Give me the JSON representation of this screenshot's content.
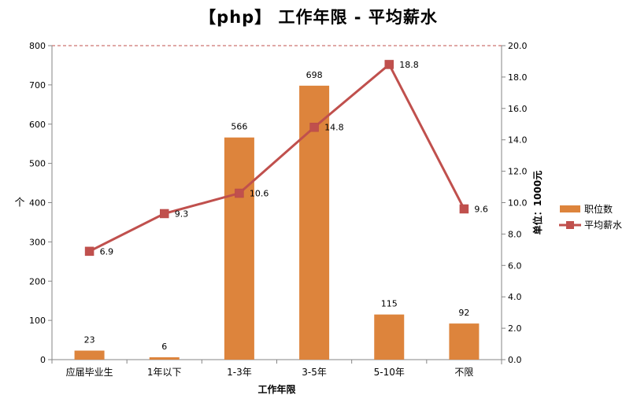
{
  "title": "【php】 工作年限 - 平均薪水",
  "chart_data": {
    "type": "bar+line",
    "title": "【php】 工作年限 - 平均薪水",
    "xlabel": "工作年限",
    "ylabel": "个",
    "y2label": "单位：1000元",
    "categories": [
      "应届毕业生",
      "1年以下",
      "1-3年",
      "3-5年",
      "5-10年",
      "不限"
    ],
    "series": [
      {
        "name": "职位数",
        "type": "bar",
        "axis": "left",
        "color": "#DD843C",
        "values": [
          23,
          6,
          566,
          698,
          115,
          92
        ]
      },
      {
        "name": "平均薪水",
        "type": "line",
        "axis": "right",
        "color": "#C0504D",
        "values": [
          6.9,
          9.3,
          10.6,
          14.8,
          18.8,
          9.6
        ]
      }
    ],
    "ylim": [
      0,
      800
    ],
    "yticks": [
      0,
      100,
      200,
      300,
      400,
      500,
      600,
      700,
      800
    ],
    "y2lim": [
      0,
      20
    ],
    "y2ticks": [
      "0.0",
      "2.0",
      "4.0",
      "6.0",
      "8.0",
      "10.0",
      "12.0",
      "14.0",
      "16.0",
      "18.0",
      "20.0"
    ],
    "grid": false,
    "top_reference_line": "dashed red at 800 / 20.0",
    "legend_position": "right"
  },
  "legend": [
    {
      "label": "职位数",
      "color": "#DD843C",
      "kind": "bar"
    },
    {
      "label": "平均薪水",
      "color": "#C0504D",
      "kind": "line"
    }
  ]
}
